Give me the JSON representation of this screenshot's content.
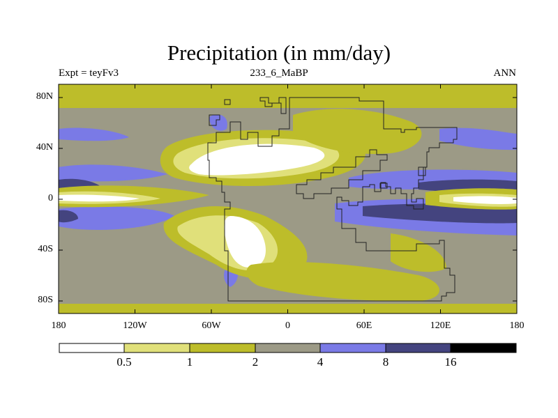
{
  "title": "Precipitation (in mm/day)",
  "subtitle": {
    "left": "Expt = teyFv3",
    "center": "233_6_MaBP",
    "right": "ANN"
  },
  "latitude_ticks": [
    "80N",
    "40N",
    "0",
    "40S",
    "80S"
  ],
  "longitude_ticks": [
    "180",
    "120W",
    "60W",
    "0",
    "60E",
    "120E",
    "180"
  ],
  "colorbar": {
    "levels": [
      "0.5",
      "1",
      "2",
      "4",
      "8",
      "16"
    ],
    "colors": [
      "#ffffff",
      "#e0e07a",
      "#bdbd2a",
      "#9c9a86",
      "#7a7ae6",
      "#44447f",
      "#000000"
    ]
  }
}
